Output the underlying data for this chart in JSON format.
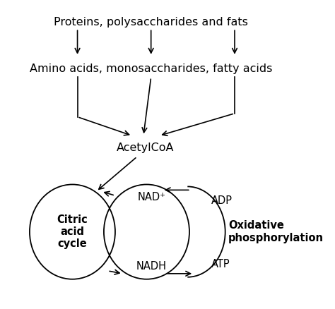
{
  "bg_color": "#ffffff",
  "text_color": "#000000",
  "figsize": [
    4.74,
    4.38
  ],
  "dpi": 100,
  "labels": {
    "proteins": "Proteins, polysaccharides and fats",
    "amino": "Amino acids, monosaccharides, fatty acids",
    "acetyl": "AcetylCoA",
    "citric_bold": "Citric\nacid\ncycle",
    "nadplus": "NAD⁺",
    "nadh": "NADH",
    "adp": "ADP",
    "atp": "ATP",
    "oxphos_bold": "Oxidative\nphosphorylation"
  },
  "arrow_lw": 1.2,
  "circle_lw": 1.3,
  "fontsize_main": 11.5,
  "fontsize_small": 10.5
}
